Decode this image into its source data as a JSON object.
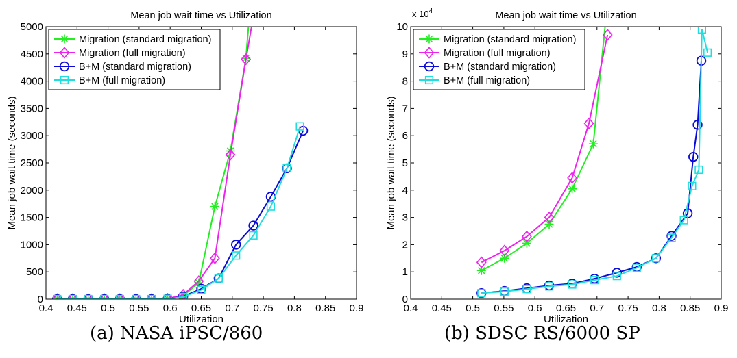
{
  "chart_data": [
    {
      "type": "line",
      "title": "Mean job wait time  vs  Utilization",
      "xlabel": "Utilization",
      "ylabel": "Mean job wait time (seconds)",
      "xlim": [
        0.4,
        0.9
      ],
      "ylim": [
        0,
        5000
      ],
      "xticks": [
        0.4,
        0.45,
        0.5,
        0.55,
        0.6,
        0.65,
        0.7,
        0.75,
        0.8,
        0.85,
        0.9
      ],
      "yticks": [
        0,
        500,
        1000,
        1500,
        2000,
        2500,
        3000,
        3500,
        4000,
        4500,
        5000
      ],
      "xtick_labels": [
        "0.4",
        "0.45",
        "0.5",
        "0.55",
        "0.6",
        "0.65",
        "0.7",
        "0.75",
        "0.8",
        "0.85",
        "0.9"
      ],
      "ytick_labels": [
        "0",
        "500",
        "1000",
        "1500",
        "2000",
        "2500",
        "3000",
        "3500",
        "4000",
        "4500",
        "5000"
      ],
      "legend_position": "top-left",
      "caption": "(a) NASA iPSC/860",
      "series": [
        {
          "name": "Migration (standard migration)",
          "color": "#22ee22",
          "marker": "star",
          "x": [
            0.418,
            0.443,
            0.468,
            0.494,
            0.519,
            0.545,
            0.57,
            0.596,
            0.621,
            0.646,
            0.672,
            0.697,
            0.722,
            0.726
          ],
          "y": [
            0,
            0,
            0,
            0,
            0,
            0,
            0,
            5,
            60,
            300,
            1700,
            2720,
            4420,
            5000
          ]
        },
        {
          "name": "Migration (full migration)",
          "color": "#ee22ee",
          "marker": "diamond",
          "x": [
            0.418,
            0.443,
            0.468,
            0.494,
            0.519,
            0.545,
            0.57,
            0.596,
            0.621,
            0.646,
            0.672,
            0.697,
            0.722,
            0.731
          ],
          "y": [
            0,
            0,
            0,
            0,
            0,
            0,
            0,
            5,
            80,
            330,
            750,
            2650,
            4400,
            5000
          ]
        },
        {
          "name": "B+M (standard migration)",
          "color": "#0a0ad8",
          "marker": "circle",
          "x": [
            0.418,
            0.443,
            0.468,
            0.494,
            0.519,
            0.545,
            0.57,
            0.596,
            0.621,
            0.65,
            0.678,
            0.706,
            0.734,
            0.762,
            0.788,
            0.814
          ],
          "y": [
            0,
            0,
            0,
            0,
            0,
            0,
            0,
            5,
            50,
            190,
            380,
            1000,
            1350,
            1880,
            2400,
            3090
          ]
        },
        {
          "name": "B+M (full migration)",
          "color": "#22dddd",
          "marker": "square",
          "x": [
            0.418,
            0.443,
            0.468,
            0.494,
            0.519,
            0.545,
            0.57,
            0.596,
            0.621,
            0.65,
            0.678,
            0.706,
            0.734,
            0.762,
            0.788,
            0.809
          ],
          "y": [
            0,
            0,
            0,
            0,
            0,
            0,
            0,
            5,
            40,
            170,
            380,
            800,
            1170,
            1700,
            2400,
            3170
          ]
        }
      ]
    },
    {
      "type": "line",
      "title": "Mean job wait time  vs  Utilization",
      "xlabel": "Utilization",
      "ylabel": "Mean job wait time (seconds)",
      "xlim": [
        0.4,
        0.9
      ],
      "ylim": [
        0,
        100000
      ],
      "y_multiplier_label": "x 10",
      "y_multiplier_exponent": "4",
      "xticks": [
        0.4,
        0.45,
        0.5,
        0.55,
        0.6,
        0.65,
        0.7,
        0.75,
        0.8,
        0.85,
        0.9
      ],
      "yticks": [
        0,
        10000,
        20000,
        30000,
        40000,
        50000,
        60000,
        70000,
        80000,
        90000,
        100000
      ],
      "xtick_labels": [
        "0.4",
        "0.45",
        "0.5",
        "0.55",
        "0.6",
        "0.65",
        "0.7",
        "0.75",
        "0.8",
        "0.85",
        "0.9"
      ],
      "ytick_labels": [
        "0",
        "1",
        "2",
        "3",
        "4",
        "5",
        "6",
        "7",
        "8",
        "9",
        "10"
      ],
      "legend_position": "top-left",
      "caption": "(b) SDSC RS/6000 SP",
      "series": [
        {
          "name": "Migration (standard migration)",
          "color": "#22ee22",
          "marker": "star",
          "x": [
            0.514,
            0.551,
            0.587,
            0.623,
            0.66,
            0.694,
            0.713
          ],
          "y": [
            10500,
            15000,
            20500,
            27500,
            40500,
            57000,
            100000
          ]
        },
        {
          "name": "Migration (full migration)",
          "color": "#ee22ee",
          "marker": "diamond",
          "x": [
            0.514,
            0.551,
            0.587,
            0.623,
            0.66,
            0.687,
            0.717
          ],
          "y": [
            13500,
            17800,
            23000,
            30000,
            44500,
            64500,
            97000
          ]
        },
        {
          "name": "B+M (standard migration)",
          "color": "#0a0ad8",
          "marker": "circle",
          "x": [
            0.514,
            0.551,
            0.587,
            0.623,
            0.66,
            0.696,
            0.732,
            0.764,
            0.795,
            0.82,
            0.846,
            0.855,
            0.862,
            0.868
          ],
          "y": [
            2200,
            3000,
            4000,
            5000,
            5700,
            7500,
            9700,
            11800,
            15000,
            23200,
            31500,
            52200,
            64000,
            87500
          ]
        },
        {
          "name": "B+M (full migration)",
          "color": "#22dddd",
          "marker": "square",
          "x": [
            0.514,
            0.551,
            0.587,
            0.623,
            0.66,
            0.696,
            0.732,
            0.764,
            0.795,
            0.82,
            0.84,
            0.853,
            0.864,
            0.869,
            0.878
          ],
          "y": [
            2200,
            2800,
            3700,
            4700,
            5400,
            7000,
            8500,
            11500,
            15000,
            22500,
            29000,
            41500,
            47500,
            99000,
            90500
          ]
        }
      ]
    }
  ]
}
